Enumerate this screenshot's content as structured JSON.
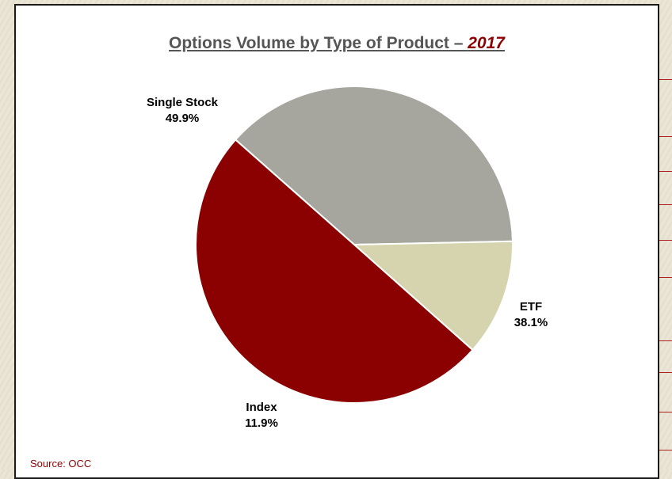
{
  "chart_data": {
    "type": "pie",
    "title_main": "Options Volume by Type of Product – ",
    "title_year": "2017",
    "slices": [
      {
        "name": "Single Stock",
        "value": 49.9,
        "label": "49.9%",
        "color": "#8b0000"
      },
      {
        "name": "ETF",
        "value": 38.1,
        "label": "38.1%",
        "color": "#a6a69e"
      },
      {
        "name": "Index",
        "value": 11.9,
        "label": "11.9%",
        "color": "#d6d4ae"
      }
    ],
    "source": "Source:  OCC"
  }
}
